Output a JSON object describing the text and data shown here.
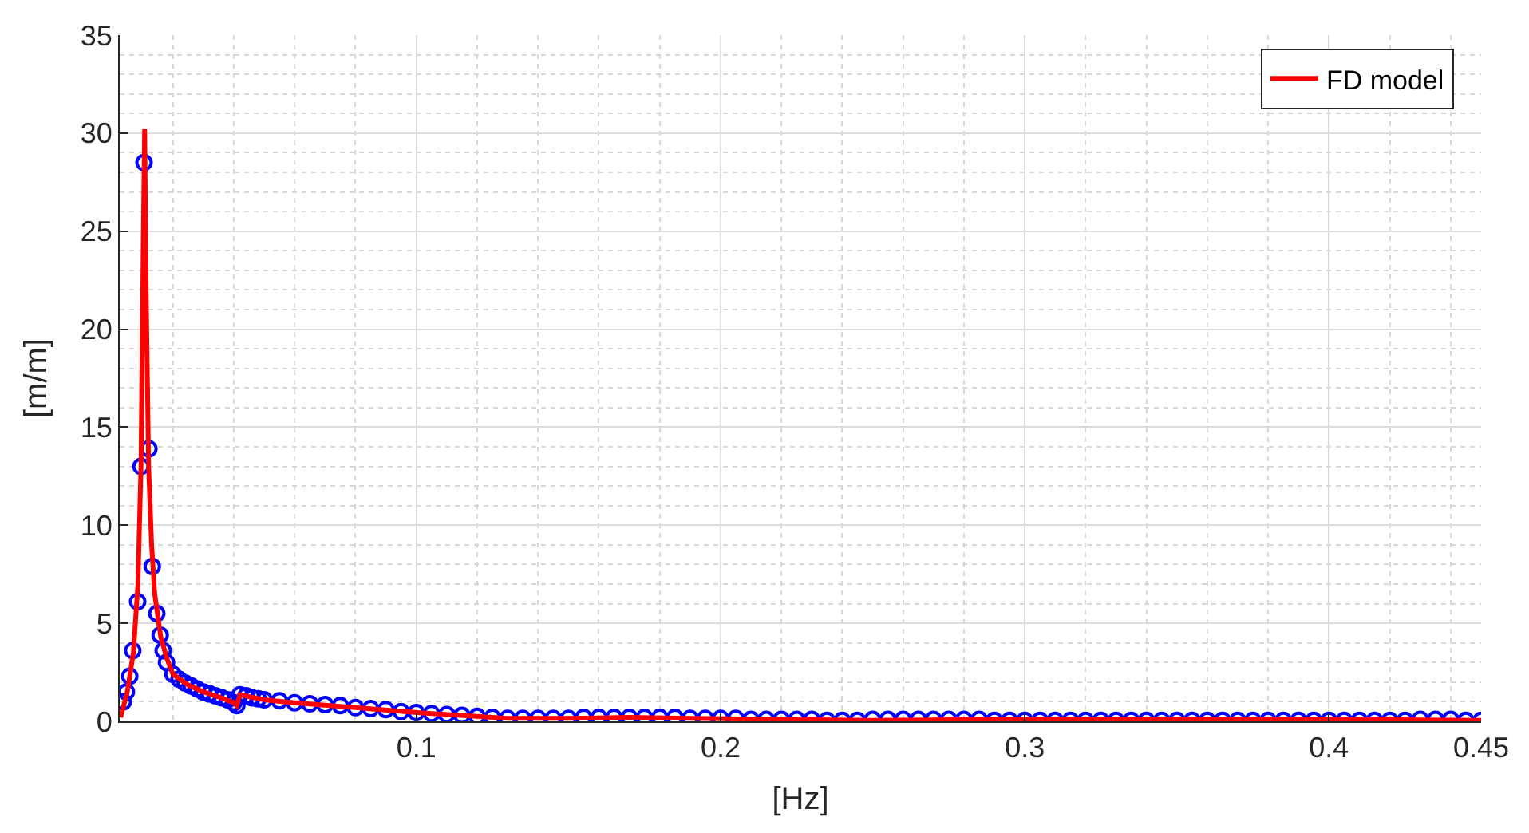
{
  "chart_data": {
    "type": "line",
    "xlabel": "[Hz]",
    "ylabel": "[m/m]",
    "xlim": [
      0.0025,
      0.45
    ],
    "xticks": [
      0.1,
      0.2,
      0.3,
      0.4,
      0.45
    ],
    "ylim": [
      0,
      35
    ],
    "yticks": [
      0,
      5,
      10,
      15,
      20,
      25,
      30,
      35
    ],
    "grid": true,
    "legend": "top right",
    "series": [
      {
        "type": "scatter",
        "marker": "circle",
        "color": "#0000ff",
        "x": [
          0.0037,
          0.0047,
          0.0058,
          0.0068,
          0.0084,
          0.0095,
          0.0105,
          0.0121,
          0.0132,
          0.0147,
          0.0158,
          0.0168,
          0.0179,
          0.02,
          0.022,
          0.024,
          0.026,
          0.028,
          0.03,
          0.032,
          0.034,
          0.036,
          0.038,
          0.04,
          0.041,
          0.042,
          0.044,
          0.046,
          0.048,
          0.05,
          0.055,
          0.06,
          0.065,
          0.07,
          0.075,
          0.08,
          0.085,
          0.09,
          0.095,
          0.1,
          0.105,
          0.11,
          0.115,
          0.12,
          0.125,
          0.13,
          0.135,
          0.14,
          0.145,
          0.15,
          0.155,
          0.16,
          0.165,
          0.17,
          0.175,
          0.18,
          0.185,
          0.19,
          0.195,
          0.2,
          0.205,
          0.21,
          0.215,
          0.22,
          0.225,
          0.23,
          0.235,
          0.24,
          0.245,
          0.25,
          0.255,
          0.26,
          0.265,
          0.27,
          0.275,
          0.28,
          0.285,
          0.29,
          0.295,
          0.3,
          0.305,
          0.31,
          0.315,
          0.32,
          0.325,
          0.33,
          0.335,
          0.34,
          0.345,
          0.35,
          0.355,
          0.36,
          0.365,
          0.37,
          0.375,
          0.38,
          0.385,
          0.39,
          0.395,
          0.4,
          0.405,
          0.41,
          0.415,
          0.42,
          0.425,
          0.43,
          0.435,
          0.44,
          0.445,
          0.45
        ],
        "values": [
          1.0,
          1.5,
          2.3,
          3.6,
          6.1,
          13.0,
          28.5,
          13.9,
          7.9,
          5.5,
          4.4,
          3.6,
          3.0,
          2.4,
          2.15,
          1.95,
          1.8,
          1.65,
          1.5,
          1.4,
          1.3,
          1.2,
          1.1,
          0.95,
          0.8,
          1.35,
          1.3,
          1.2,
          1.15,
          1.1,
          1.05,
          0.95,
          0.9,
          0.85,
          0.8,
          0.7,
          0.65,
          0.6,
          0.5,
          0.45,
          0.4,
          0.35,
          0.3,
          0.25,
          0.2,
          0.15,
          0.15,
          0.15,
          0.15,
          0.15,
          0.2,
          0.2,
          0.2,
          0.2,
          0.2,
          0.2,
          0.2,
          0.15,
          0.15,
          0.15,
          0.15,
          0.1,
          0.1,
          0.1,
          0.1,
          0.1,
          0.05,
          0.05,
          0.05,
          0.1,
          0.1,
          0.1,
          0.1,
          0.1,
          0.1,
          0.1,
          0.1,
          0.05,
          0.05,
          0.05,
          0.05,
          0.05,
          0.05,
          0.05,
          0.05,
          0.05,
          0.05,
          0.05,
          0.05,
          0.05,
          0.05,
          0.05,
          0.05,
          0.05,
          0.05,
          0.05,
          0.05,
          0.05,
          0.05,
          0.05,
          0.05,
          0.05,
          0.05,
          0.05,
          0.05,
          0.1,
          0.1,
          0.1,
          0.05,
          0.05
        ]
      },
      {
        "name": "FD model",
        "marker": "none",
        "line_style": "solid",
        "color": "#ff0000",
        "x": [
          0.0028,
          0.005,
          0.007,
          0.0085,
          0.0095,
          0.0103,
          0.0107,
          0.0112,
          0.012,
          0.013,
          0.014,
          0.016,
          0.018,
          0.02,
          0.025,
          0.03,
          0.035,
          0.04,
          0.041,
          0.042,
          0.05,
          0.06,
          0.08,
          0.1,
          0.12,
          0.13,
          0.15,
          0.17,
          0.19,
          0.22,
          0.25,
          0.3,
          0.35,
          0.4,
          0.45
        ],
        "values": [
          0.2,
          1.5,
          3.5,
          7,
          13,
          25,
          30.2,
          22,
          13,
          9,
          6.5,
          4.3,
          3.2,
          2.4,
          1.85,
          1.5,
          1.25,
          0.95,
          0.8,
          1.35,
          1.1,
          0.95,
          0.7,
          0.45,
          0.25,
          0.15,
          0.15,
          0.2,
          0.15,
          0.1,
          0.05,
          0.1,
          0.1,
          0.1,
          0.05
        ]
      }
    ]
  }
}
